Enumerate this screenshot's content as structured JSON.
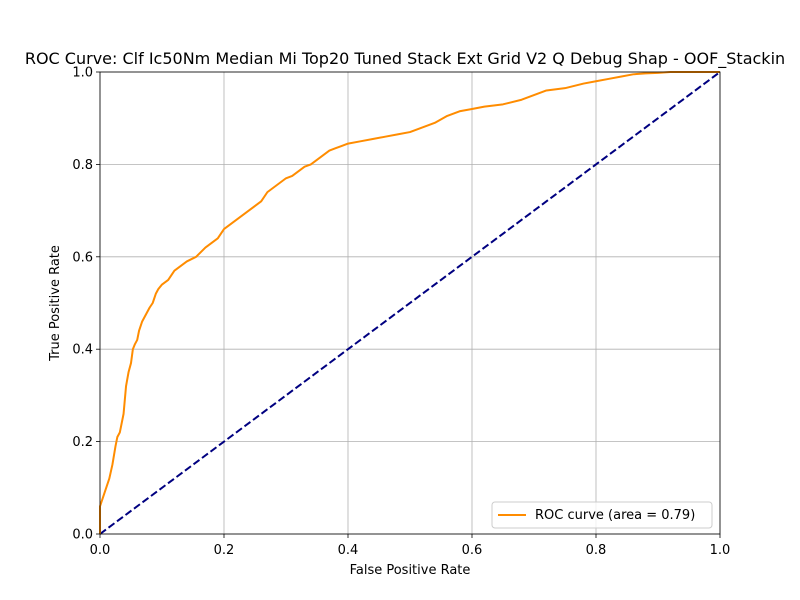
{
  "chart_data": {
    "type": "line",
    "title": "ROC Curve: Clf Ic50Nm Median Mi Top20 Tuned Stack Ext Grid V2 Q Debug Shap - OOF_Stackin",
    "xlabel": "False Positive Rate",
    "ylabel": "True Positive Rate",
    "xlim": [
      0.0,
      1.0
    ],
    "ylim": [
      0.0,
      1.0
    ],
    "x_ticks": [
      "0.0",
      "0.2",
      "0.4",
      "0.6",
      "0.8",
      "1.0"
    ],
    "y_ticks": [
      "0.0",
      "0.2",
      "0.4",
      "0.6",
      "0.8",
      "1.0"
    ],
    "grid": true,
    "legend_position": "lower right",
    "series": [
      {
        "name": "ROC curve (area = 0.79)",
        "color": "#ff8c00",
        "style": "solid",
        "x": [
          0.0,
          0.0,
          0.005,
          0.01,
          0.015,
          0.02,
          0.025,
          0.028,
          0.032,
          0.038,
          0.04,
          0.042,
          0.046,
          0.05,
          0.053,
          0.056,
          0.06,
          0.063,
          0.068,
          0.072,
          0.076,
          0.08,
          0.085,
          0.09,
          0.094,
          0.1,
          0.11,
          0.12,
          0.13,
          0.14,
          0.155,
          0.17,
          0.18,
          0.19,
          0.2,
          0.21,
          0.22,
          0.23,
          0.24,
          0.25,
          0.26,
          0.27,
          0.28,
          0.29,
          0.3,
          0.31,
          0.32,
          0.33,
          0.34,
          0.35,
          0.36,
          0.37,
          0.38,
          0.39,
          0.4,
          0.42,
          0.44,
          0.46,
          0.48,
          0.5,
          0.52,
          0.54,
          0.56,
          0.58,
          0.6,
          0.62,
          0.65,
          0.68,
          0.7,
          0.72,
          0.75,
          0.78,
          0.8,
          0.82,
          0.84,
          0.86,
          0.88,
          0.9,
          0.92,
          0.95,
          1.0
        ],
        "y": [
          0.0,
          0.06,
          0.08,
          0.1,
          0.12,
          0.15,
          0.19,
          0.21,
          0.22,
          0.26,
          0.29,
          0.32,
          0.35,
          0.37,
          0.4,
          0.41,
          0.42,
          0.44,
          0.46,
          0.47,
          0.48,
          0.49,
          0.5,
          0.52,
          0.53,
          0.54,
          0.55,
          0.57,
          0.58,
          0.59,
          0.6,
          0.62,
          0.63,
          0.64,
          0.66,
          0.67,
          0.68,
          0.69,
          0.7,
          0.71,
          0.72,
          0.74,
          0.75,
          0.76,
          0.77,
          0.775,
          0.785,
          0.795,
          0.8,
          0.81,
          0.82,
          0.83,
          0.835,
          0.84,
          0.845,
          0.85,
          0.855,
          0.86,
          0.865,
          0.87,
          0.88,
          0.89,
          0.905,
          0.915,
          0.92,
          0.925,
          0.93,
          0.94,
          0.95,
          0.96,
          0.965,
          0.975,
          0.98,
          0.985,
          0.99,
          0.995,
          0.997,
          0.998,
          1.0,
          1.0,
          1.0
        ]
      },
      {
        "color": "#000080",
        "style": "dashed",
        "x": [
          0.0,
          1.0
        ],
        "y": [
          0.0,
          1.0
        ]
      }
    ]
  }
}
